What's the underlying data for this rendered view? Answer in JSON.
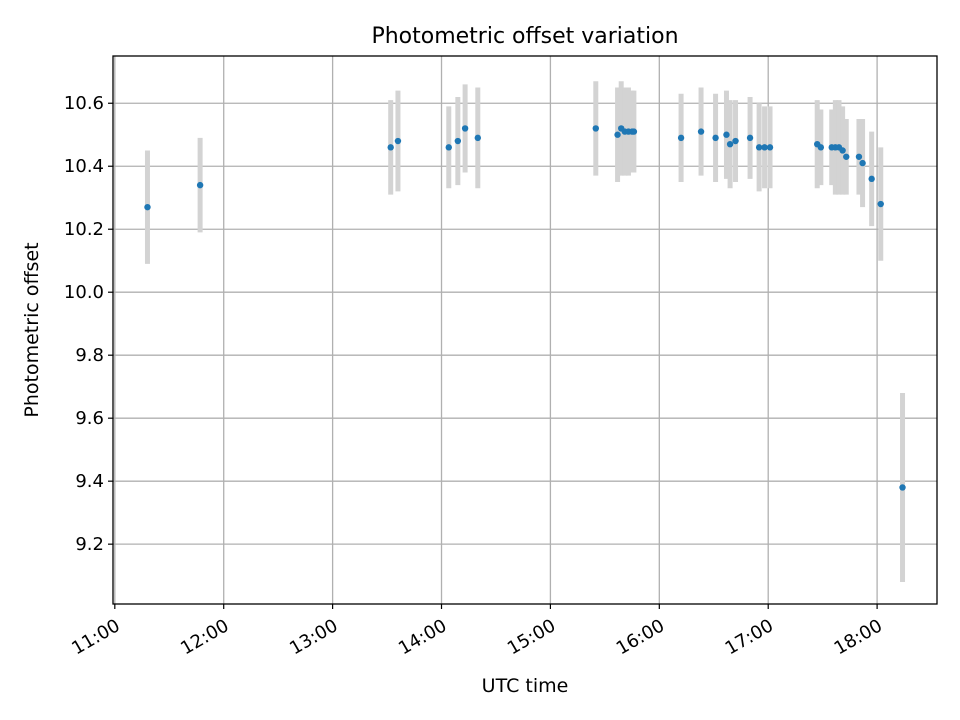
{
  "chart_data": {
    "type": "scatter",
    "title": "Photometric offset variation",
    "xlabel": "UTC time",
    "ylabel": "Photometric offset",
    "xlim": [
      "10:59",
      "18:33"
    ],
    "ylim": [
      9.01,
      10.75
    ],
    "x_ticks": [
      "11:00",
      "12:00",
      "13:00",
      "14:00",
      "15:00",
      "16:00",
      "17:00",
      "18:00"
    ],
    "y_ticks": [
      9.2,
      9.4,
      9.6,
      9.8,
      10.0,
      10.2,
      10.4,
      10.6
    ],
    "grid": true,
    "colors": {
      "points": "#1f77b4",
      "error_bars": "#d3d3d3",
      "grid": "#b0b0b0"
    },
    "points": [
      {
        "x": "11:18",
        "y": 10.27,
        "err": 0.18
      },
      {
        "x": "11:47",
        "y": 10.34,
        "err": 0.15
      },
      {
        "x": "13:32",
        "y": 10.46,
        "err": 0.15
      },
      {
        "x": "13:36",
        "y": 10.48,
        "err": 0.16
      },
      {
        "x": "14:04",
        "y": 10.46,
        "err": 0.13
      },
      {
        "x": "14:09",
        "y": 10.48,
        "err": 0.14
      },
      {
        "x": "14:13",
        "y": 10.52,
        "err": 0.14
      },
      {
        "x": "14:20",
        "y": 10.49,
        "err": 0.16
      },
      {
        "x": "15:25",
        "y": 10.52,
        "err": 0.15
      },
      {
        "x": "15:37",
        "y": 10.5,
        "err": 0.15
      },
      {
        "x": "15:39",
        "y": 10.52,
        "err": 0.15
      },
      {
        "x": "15:41",
        "y": 10.51,
        "err": 0.14
      },
      {
        "x": "15:43",
        "y": 10.51,
        "err": 0.14
      },
      {
        "x": "15:45",
        "y": 10.51,
        "err": 0.13
      },
      {
        "x": "15:46",
        "y": 10.51,
        "err": 0.13
      },
      {
        "x": "16:12",
        "y": 10.49,
        "err": 0.14
      },
      {
        "x": "16:23",
        "y": 10.51,
        "err": 0.14
      },
      {
        "x": "16:31",
        "y": 10.49,
        "err": 0.14
      },
      {
        "x": "16:37",
        "y": 10.5,
        "err": 0.14
      },
      {
        "x": "16:39",
        "y": 10.47,
        "err": 0.14
      },
      {
        "x": "16:42",
        "y": 10.48,
        "err": 0.13
      },
      {
        "x": "16:50",
        "y": 10.49,
        "err": 0.13
      },
      {
        "x": "16:55",
        "y": 10.46,
        "err": 0.14
      },
      {
        "x": "16:58",
        "y": 10.46,
        "err": 0.13
      },
      {
        "x": "17:01",
        "y": 10.46,
        "err": 0.13
      },
      {
        "x": "17:27",
        "y": 10.47,
        "err": 0.14
      },
      {
        "x": "17:29",
        "y": 10.46,
        "err": 0.12
      },
      {
        "x": "17:35",
        "y": 10.46,
        "err": 0.12
      },
      {
        "x": "17:37",
        "y": 10.46,
        "err": 0.15
      },
      {
        "x": "17:39",
        "y": 10.46,
        "err": 0.15
      },
      {
        "x": "17:41",
        "y": 10.45,
        "err": 0.14
      },
      {
        "x": "17:43",
        "y": 10.43,
        "err": 0.12
      },
      {
        "x": "17:50",
        "y": 10.43,
        "err": 0.12
      },
      {
        "x": "17:52",
        "y": 10.41,
        "err": 0.14
      },
      {
        "x": "17:57",
        "y": 10.36,
        "err": 0.15
      },
      {
        "x": "18:02",
        "y": 10.28,
        "err": 0.18
      },
      {
        "x": "18:14",
        "y": 9.38,
        "err": 0.3
      }
    ]
  }
}
